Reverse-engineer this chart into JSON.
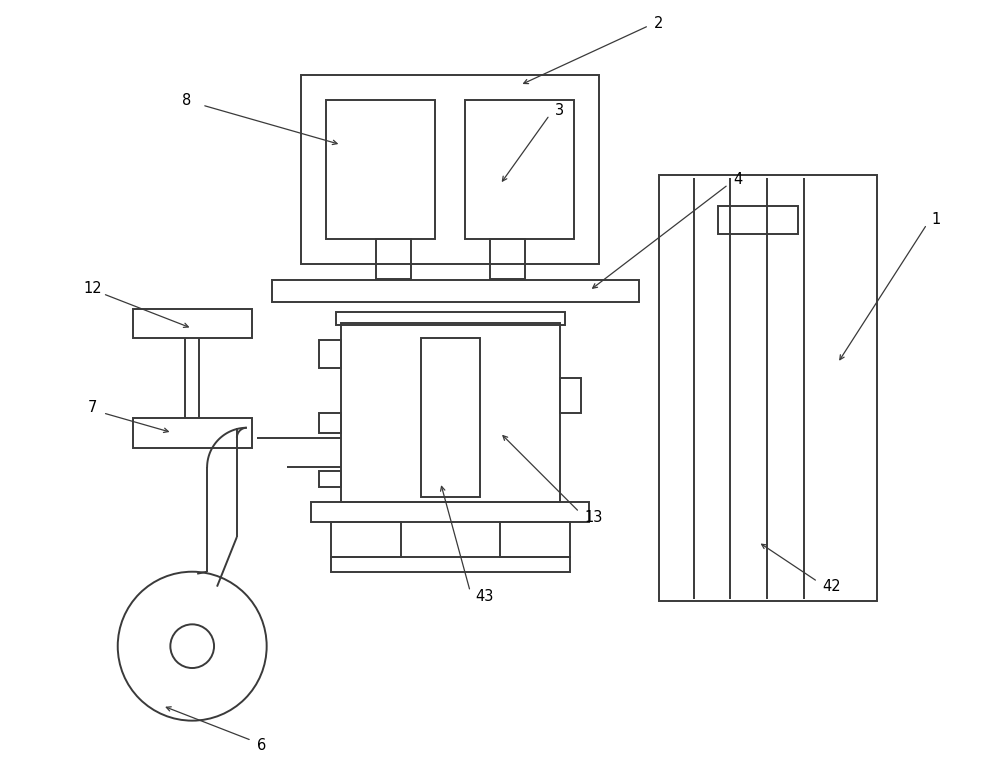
{
  "bg_color": "#ffffff",
  "line_color": "#3a3a3a",
  "lw": 1.4,
  "fig_w": 10.0,
  "fig_h": 7.83,
  "dpi": 100
}
